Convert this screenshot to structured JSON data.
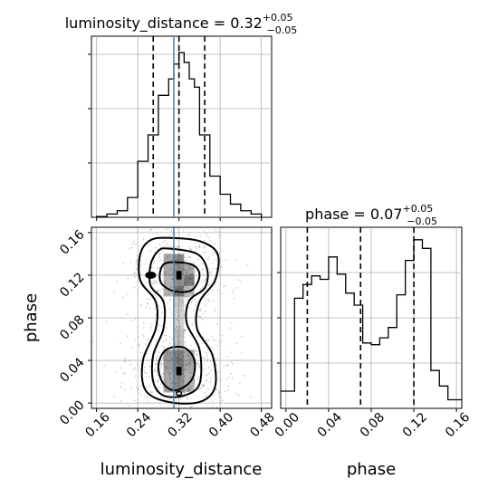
{
  "chart_data": [
    {
      "type": "histogram",
      "panel": "luminosity_distance marginal",
      "title": {
        "parameter": "luminosity_distance",
        "median": "0.32",
        "plus": "+0.05",
        "minus": "−0.05"
      },
      "x_range": [
        0.15,
        0.5
      ],
      "bin_edges": [
        0.16,
        0.18,
        0.2,
        0.22,
        0.24,
        0.26,
        0.28,
        0.3,
        0.31,
        0.32,
        0.33,
        0.34,
        0.35,
        0.36,
        0.38,
        0.4,
        0.42,
        0.44,
        0.46,
        0.48
      ],
      "counts": [
        0.005,
        0.02,
        0.04,
        0.12,
        0.34,
        0.5,
        0.74,
        0.84,
        0.93,
        1.0,
        0.94,
        0.84,
        0.79,
        0.5,
        0.25,
        0.14,
        0.08,
        0.04,
        0.02
      ],
      "quantile_lines": [
        0.27,
        0.32,
        0.37
      ],
      "truth": 0.31
    },
    {
      "type": "contour",
      "panel": "2D posterior",
      "xlabel": "luminosity_distance",
      "ylabel": "phase",
      "x_range": [
        0.15,
        0.5
      ],
      "y_range": [
        -0.005,
        0.165
      ],
      "x_ticks": [
        "0.16",
        "0.24",
        "0.32",
        "0.40",
        "0.48"
      ],
      "y_ticks": [
        "0.00",
        "0.04",
        "0.08",
        "0.12",
        "0.16"
      ],
      "x_tick_values": [
        0.16,
        0.24,
        0.32,
        0.4,
        0.48
      ],
      "y_tick_values": [
        0.0,
        0.04,
        0.08,
        0.12,
        0.16
      ],
      "modes": [
        {
          "x": 0.32,
          "y": 0.12,
          "peak": "black"
        },
        {
          "x": 0.32,
          "y": 0.03,
          "peak": "black"
        }
      ],
      "truth_x": 0.31
    },
    {
      "type": "histogram",
      "panel": "phase marginal",
      "title": {
        "parameter": "phase",
        "median": "0.07",
        "plus": "+0.05",
        "minus": "−0.05"
      },
      "xlabel": "phase",
      "x_range": [
        -0.005,
        0.165
      ],
      "x_ticks": [
        "0.00",
        "0.04",
        "0.08",
        "0.12",
        "0.16"
      ],
      "x_tick_values": [
        0.0,
        0.04,
        0.08,
        0.12,
        0.16
      ],
      "bin_edges": [
        0.0,
        0.008,
        0.016,
        0.024,
        0.032,
        0.04,
        0.048,
        0.056,
        0.064,
        0.072,
        0.08,
        0.088,
        0.096,
        0.104,
        0.112,
        0.12,
        0.128,
        0.136,
        0.144,
        0.152,
        0.16
      ],
      "counts": [
        0.1,
        0.64,
        0.72,
        0.77,
        0.75,
        0.88,
        0.78,
        0.67,
        0.6,
        0.38,
        0.37,
        0.41,
        0.47,
        0.66,
        0.86,
        0.98,
        0.93,
        0.22,
        0.13,
        0.05
      ],
      "quantile_lines": [
        0.02,
        0.07,
        0.12
      ]
    }
  ],
  "colors": {
    "hist": "#000000",
    "truth": "#4682b4",
    "grid": "#b0b0b0",
    "scatter": "#000000"
  }
}
